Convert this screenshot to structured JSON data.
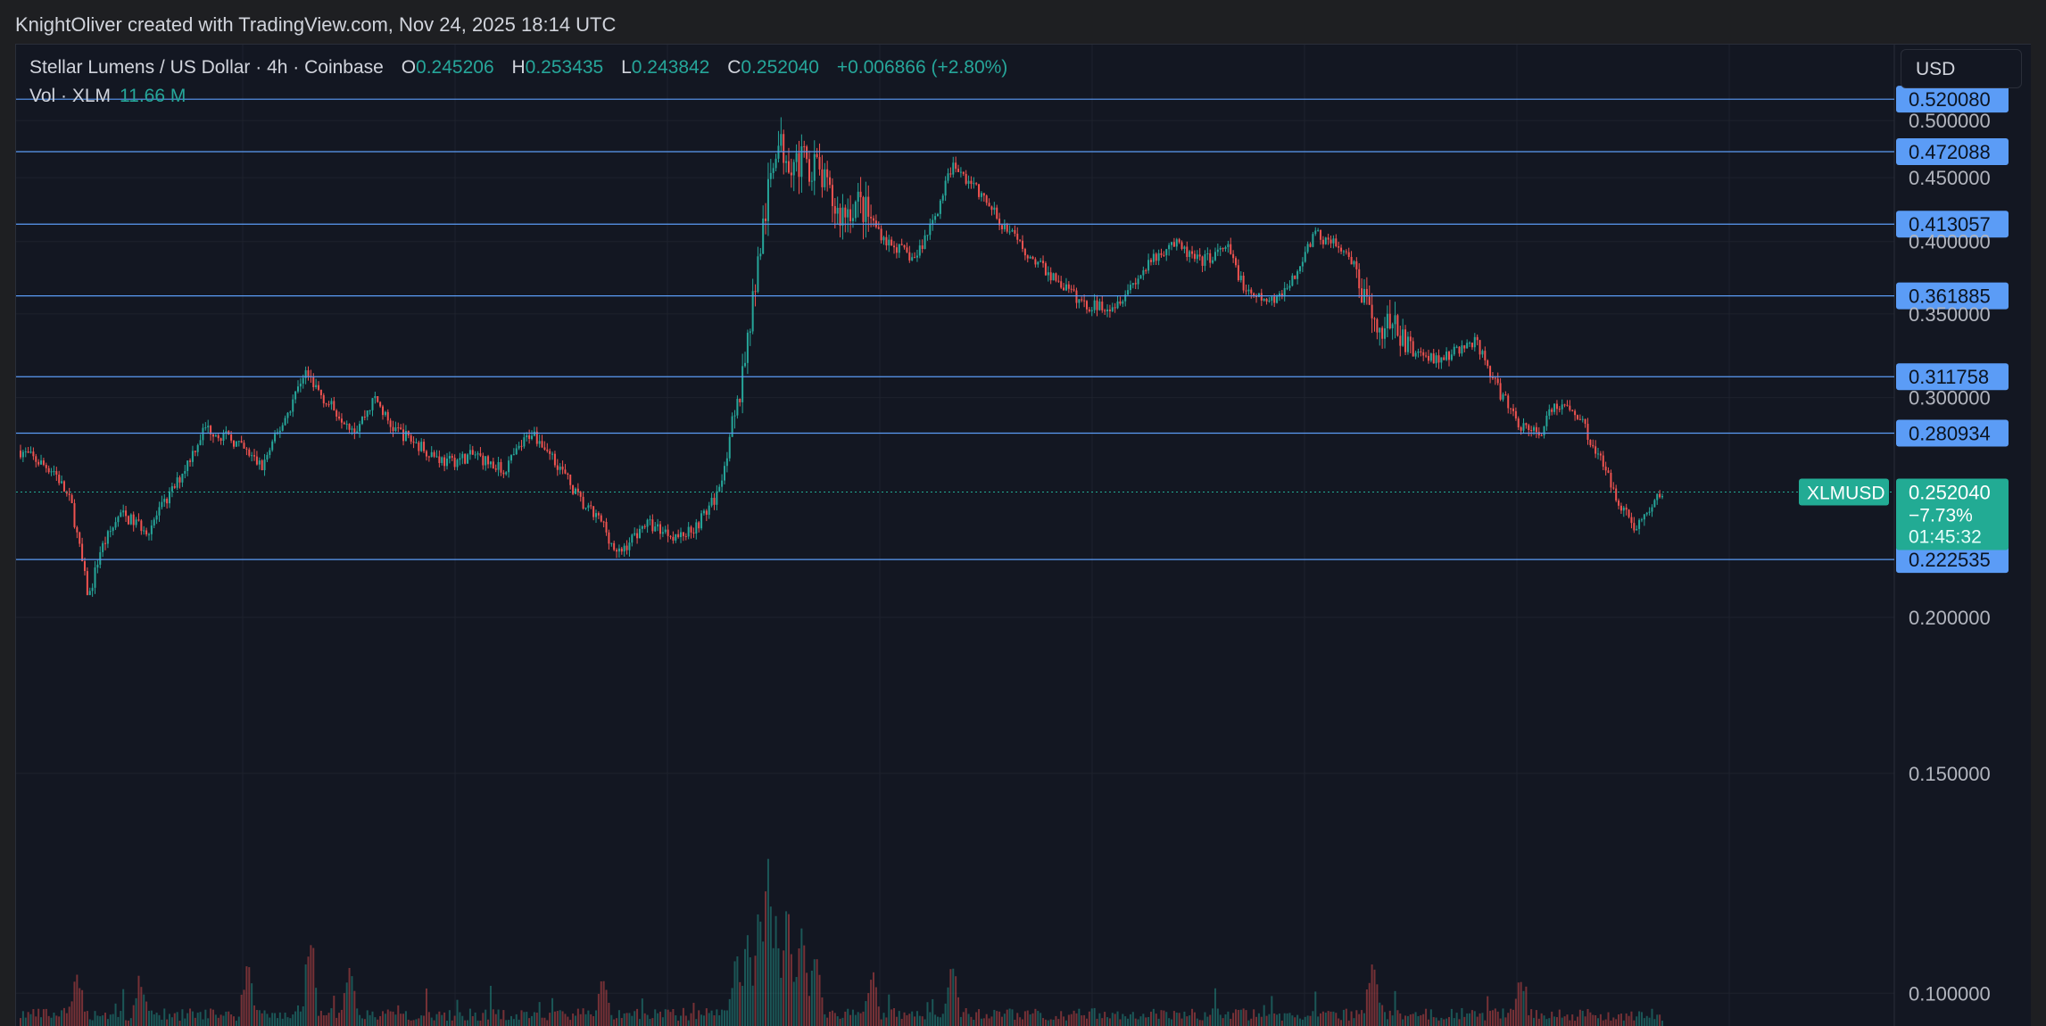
{
  "header": {
    "attribution": "KnightOliver created with TradingView.com, Nov 24, 2025 18:14 UTC"
  },
  "legend": {
    "symbol": "Stellar Lumens / US Dollar · 4h · Coinbase",
    "open_label": "O",
    "open": "0.245206",
    "high_label": "H",
    "high": "0.253435",
    "low_label": "L",
    "low": "0.243842",
    "close_label": "C",
    "close": "0.252040",
    "change": "+0.006866 (+2.80%)",
    "volume_label": "Vol · XLM",
    "volume": "11.66 M"
  },
  "toolbar": {
    "currency": "USD"
  },
  "colors": {
    "up": "#26a69a",
    "down": "#ef5350",
    "level_line": "#5b9cf6",
    "level_badge": "#5b9cf6",
    "price_badge": "#22ab94",
    "grid": "#1e222d",
    "axis_text": "#b2b5be",
    "background": "#131722"
  },
  "chart_data": {
    "type": "candlestick",
    "symbol": "XLMUSD",
    "interval": "4h",
    "y_scale": "log",
    "ylim": [
      0.0957,
      0.5254
    ],
    "y_ticks": [
      "0.500000",
      "0.450000",
      "0.400000",
      "0.350000",
      "0.300000",
      "0.200000",
      "0.150000",
      "0.100000"
    ],
    "y_tick_values": [
      0.5,
      0.45,
      0.4,
      0.35,
      0.3,
      0.2,
      0.15,
      0.1
    ],
    "partial_top_tick": "0.520080",
    "horizontal_levels": [
      0.52008,
      0.472088,
      0.413057,
      0.361885,
      0.311758,
      0.280934,
      0.222535
    ],
    "level_labels": [
      "0.520080",
      "0.472088",
      "0.413057",
      "0.361885",
      "0.311758",
      "0.280934",
      "0.222535"
    ],
    "last_price": {
      "symbol": "XLMUSD",
      "value": 0.25204,
      "label": "0.252040",
      "change_pct": "−7.73%",
      "countdown": "01:45:32"
    },
    "price_path": [
      [
        0,
        0.272
      ],
      [
        8,
        0.265
      ],
      [
        12,
        0.262
      ],
      [
        18,
        0.246
      ],
      [
        24,
        0.207
      ],
      [
        28,
        0.226
      ],
      [
        35,
        0.242
      ],
      [
        45,
        0.235
      ],
      [
        55,
        0.256
      ],
      [
        65,
        0.284
      ],
      [
        75,
        0.277
      ],
      [
        85,
        0.264
      ],
      [
        95,
        0.295
      ],
      [
        100,
        0.315
      ],
      [
        108,
        0.297
      ],
      [
        118,
        0.283
      ],
      [
        125,
        0.3
      ],
      [
        130,
        0.285
      ],
      [
        140,
        0.275
      ],
      [
        150,
        0.266
      ],
      [
        160,
        0.27
      ],
      [
        170,
        0.262
      ],
      [
        180,
        0.282
      ],
      [
        188,
        0.268
      ],
      [
        198,
        0.246
      ],
      [
        205,
        0.238
      ],
      [
        210,
        0.224
      ],
      [
        220,
        0.238
      ],
      [
        232,
        0.232
      ],
      [
        238,
        0.237
      ],
      [
        245,
        0.25
      ],
      [
        252,
        0.29
      ],
      [
        260,
        0.39
      ],
      [
        266,
        0.48
      ],
      [
        272,
        0.465
      ],
      [
        280,
        0.46
      ],
      [
        288,
        0.42
      ],
      [
        295,
        0.43
      ],
      [
        305,
        0.4
      ],
      [
        315,
        0.387
      ],
      [
        322,
        0.42
      ],
      [
        328,
        0.46
      ],
      [
        335,
        0.445
      ],
      [
        345,
        0.415
      ],
      [
        355,
        0.39
      ],
      [
        365,
        0.372
      ],
      [
        375,
        0.355
      ],
      [
        385,
        0.356
      ],
      [
        395,
        0.378
      ],
      [
        405,
        0.4
      ],
      [
        415,
        0.385
      ],
      [
        425,
        0.395
      ],
      [
        432,
        0.362
      ],
      [
        440,
        0.358
      ],
      [
        448,
        0.372
      ],
      [
        455,
        0.405
      ],
      [
        462,
        0.4
      ],
      [
        470,
        0.38
      ],
      [
        476,
        0.34
      ],
      [
        482,
        0.345
      ],
      [
        490,
        0.326
      ],
      [
        500,
        0.322
      ],
      [
        512,
        0.333
      ],
      [
        520,
        0.305
      ],
      [
        528,
        0.285
      ],
      [
        535,
        0.281
      ],
      [
        540,
        0.296
      ],
      [
        548,
        0.292
      ],
      [
        556,
        0.268
      ],
      [
        562,
        0.25
      ],
      [
        568,
        0.236
      ],
      [
        572,
        0.241
      ],
      [
        578,
        0.252
      ]
    ],
    "path_x_max": 578,
    "volume": {
      "max_m": 8.0,
      "spikes": [
        [
          20,
          2.1
        ],
        [
          42,
          1.8
        ],
        [
          80,
          2.4
        ],
        [
          102,
          3.4
        ],
        [
          116,
          2.2
        ],
        [
          205,
          2.0
        ],
        [
          252,
          2.9
        ],
        [
          256,
          3.8
        ],
        [
          260,
          5.2
        ],
        [
          263,
          7.8
        ],
        [
          266,
          4.6
        ],
        [
          270,
          5.5
        ],
        [
          275,
          4.2
        ],
        [
          280,
          3.2
        ],
        [
          300,
          2.2
        ],
        [
          328,
          2.6
        ],
        [
          476,
          2.8
        ],
        [
          528,
          1.6
        ]
      ]
    }
  }
}
